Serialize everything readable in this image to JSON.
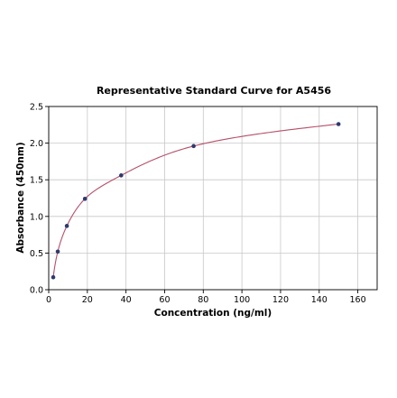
{
  "chart_data": {
    "type": "scatter",
    "title": "Representative Standard Curve for A5456",
    "xlabel": "Concentration (ng/ml)",
    "ylabel": "Absorbance (450nm)",
    "xlim": [
      0,
      170
    ],
    "ylim": [
      0,
      2.5
    ],
    "xticks": [
      0,
      20,
      40,
      60,
      80,
      100,
      120,
      140,
      160
    ],
    "yticks": [
      0.0,
      0.5,
      1.0,
      1.5,
      2.0,
      2.5
    ],
    "xtick_labels": [
      "0",
      "20",
      "40",
      "60",
      "80",
      "100",
      "120",
      "140",
      "160"
    ],
    "ytick_labels": [
      "0.0",
      "0.5",
      "1.0",
      "1.5",
      "2.0",
      "2.5"
    ],
    "grid": true,
    "points": [
      {
        "x": 2.34,
        "y": 0.17
      },
      {
        "x": 4.69,
        "y": 0.52
      },
      {
        "x": 9.38,
        "y": 0.87
      },
      {
        "x": 18.75,
        "y": 1.24
      },
      {
        "x": 37.5,
        "y": 1.56
      },
      {
        "x": 75,
        "y": 1.96
      },
      {
        "x": 150,
        "y": 2.26
      }
    ],
    "fit_curve": {
      "type": "four-parameter-logistic",
      "x_min_value": 2.34,
      "x_max_value": 150
    },
    "colors": {
      "points": "#2e3a6e",
      "curve": "#b5506a",
      "grid": "#c8c8c8"
    }
  }
}
